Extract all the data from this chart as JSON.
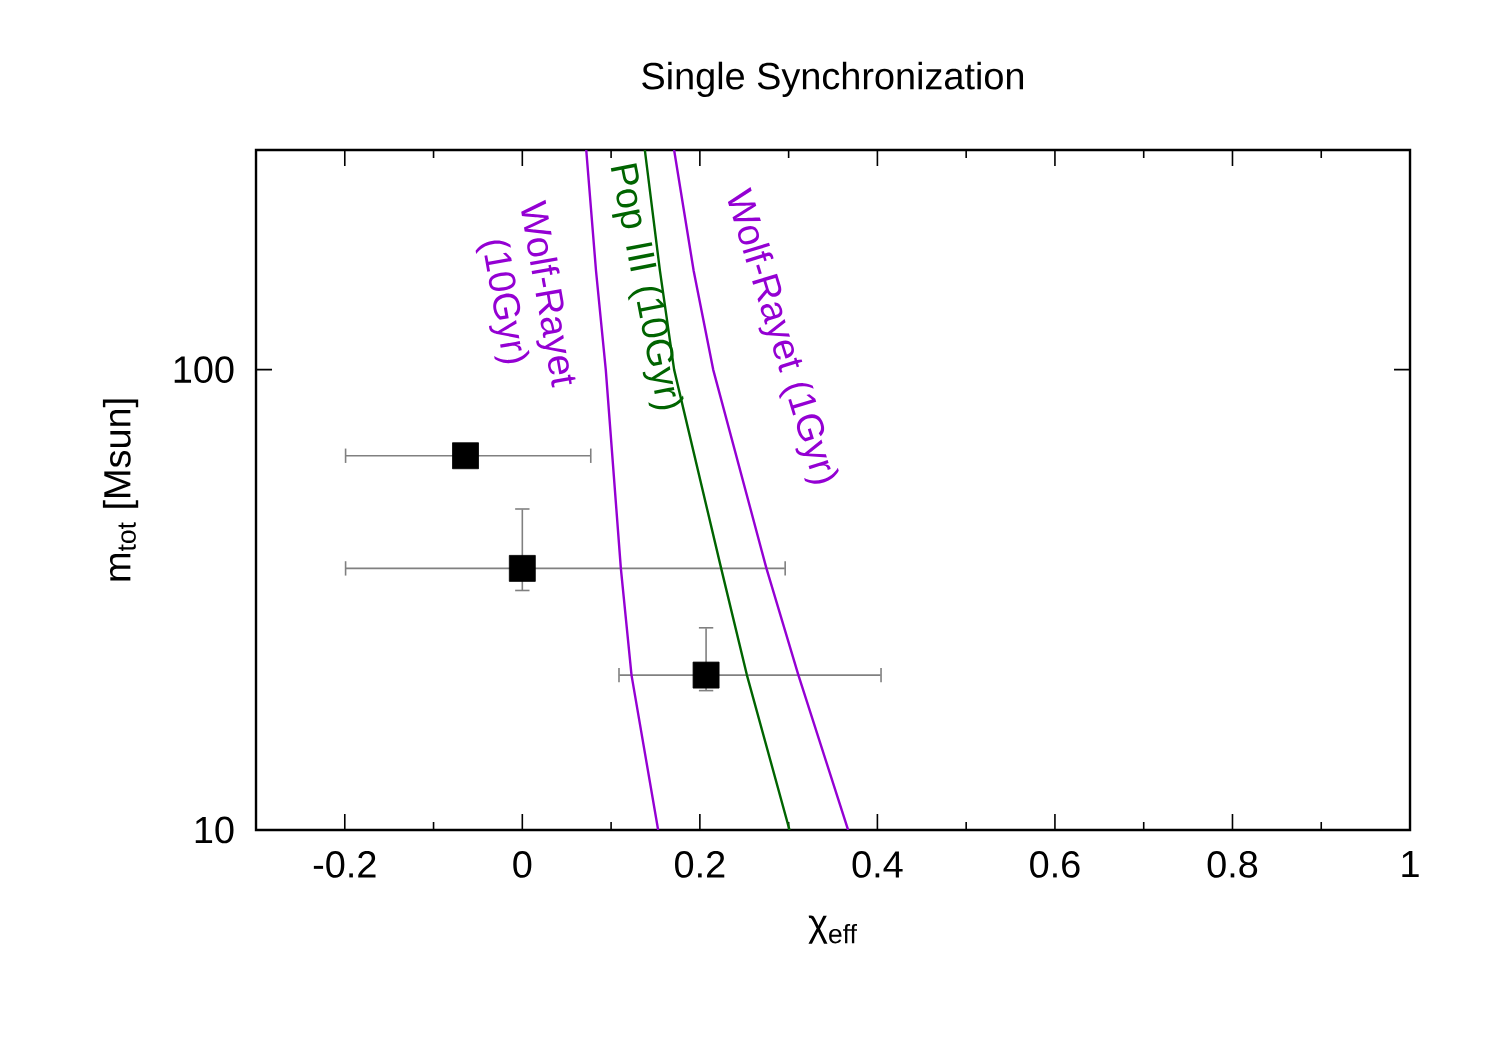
{
  "chart_data": {
    "type": "line",
    "title": "Single Synchronization",
    "xlabel": "χ$_{eff}$",
    "ylabel": "m$_{tot}$ [Msun]",
    "log": "y",
    "xlim": [
      -0.3,
      1
    ],
    "xticks": [
      -0.2,
      0,
      0.2,
      0.4,
      0.6,
      0.8,
      1
    ],
    "ylim": [
      10,
      300
    ],
    "yticks": [
      10,
      100
    ],
    "grid": false,
    "legend": false,
    "marker": "none",
    "line_style": "solid",
    "series": [
      {
        "type": "scatter",
        "marker": "square",
        "color": "#000000",
        "x": [
          -0.064,
          0.0,
          0.207
        ],
        "values": [
          65,
          37,
          21.7
        ],
        "xerrors": [
          [
            -0.2,
            0.078
          ],
          [
            -0.2,
            0.297
          ],
          [
            0.108,
            0.405
          ]
        ],
        "errors": [
          null,
          [
            33,
            50
          ],
          [
            20,
            27.6
          ]
        ]
      },
      {
        "name": "Wolf-Rayet (10Gyr)",
        "color": "#9400d3",
        "x": [
          0.072,
          0.083,
          0.094,
          0.111,
          0.123,
          0.153
        ],
        "values": [
          300,
          164,
          100,
          37,
          21.7,
          10
        ]
      },
      {
        "name": "Pop III (10Gyr)",
        "color": "#006400",
        "x": [
          0.138,
          0.155,
          0.171,
          0.224,
          0.253,
          0.301
        ],
        "values": [
          300,
          164,
          100,
          37,
          21.7,
          10
        ]
      },
      {
        "name": "Wolf-Rayet (1Gyr)",
        "color": "#9400d3",
        "x": [
          0.171,
          0.193,
          0.215,
          0.275,
          0.311,
          0.367
        ],
        "values": [
          300,
          164,
          100,
          37,
          21.7,
          10
        ]
      }
    ]
  }
}
